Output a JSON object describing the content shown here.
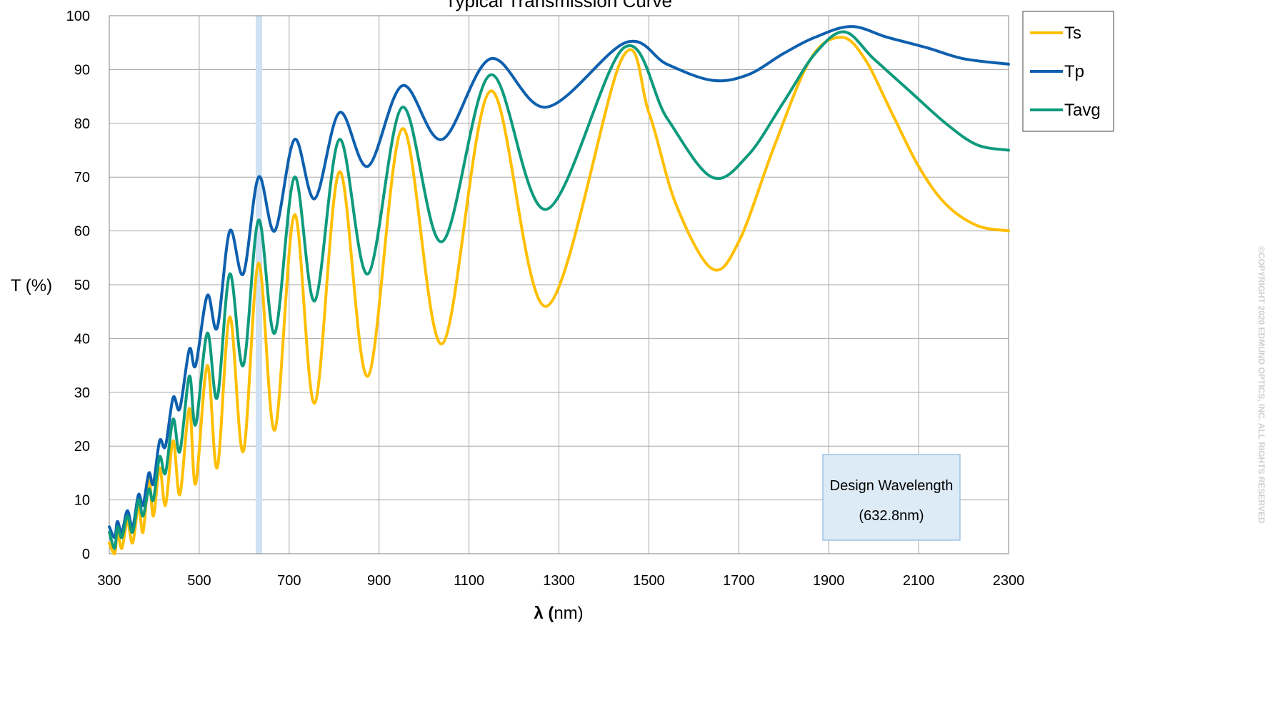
{
  "chart_data": {
    "type": "line",
    "title": "Typical Transmission Curve",
    "xlabel_symbol": "λ (",
    "xlabel_unit": "nm)",
    "ylabel": "T (%)",
    "xlim": [
      300,
      2300
    ],
    "ylim": [
      0,
      100
    ],
    "xticks": [
      300,
      500,
      700,
      900,
      1100,
      1300,
      1500,
      1700,
      1900,
      2100,
      2300
    ],
    "yticks": [
      0,
      10,
      20,
      30,
      40,
      50,
      60,
      70,
      80,
      90,
      100
    ],
    "grid": true,
    "legend_position": "top-right, outside plot",
    "series": [
      {
        "name": "Ts",
        "color": "#FFBF00",
        "points": [
          [
            300,
            2
          ],
          [
            312,
            0
          ],
          [
            318,
            4
          ],
          [
            328,
            1
          ],
          [
            340,
            6
          ],
          [
            352,
            2
          ],
          [
            365,
            9
          ],
          [
            375,
            4
          ],
          [
            388,
            14
          ],
          [
            398,
            7
          ],
          [
            412,
            16
          ],
          [
            425,
            9
          ],
          [
            442,
            21
          ],
          [
            457,
            11
          ],
          [
            478,
            27
          ],
          [
            492,
            13
          ],
          [
            518,
            35
          ],
          [
            540,
            16
          ],
          [
            568,
            44
          ],
          [
            598,
            19
          ],
          [
            632,
            54
          ],
          [
            668,
            23
          ],
          [
            712,
            63
          ],
          [
            757,
            28
          ],
          [
            812,
            71
          ],
          [
            875,
            33
          ],
          [
            952,
            79
          ],
          [
            1040,
            39
          ],
          [
            1148,
            86
          ],
          [
            1272,
            46
          ],
          [
            1440,
            92
          ],
          [
            1500,
            82
          ],
          [
            1560,
            65
          ],
          [
            1640,
            53
          ],
          [
            1700,
            58
          ],
          [
            1780,
            76
          ],
          [
            1860,
            92
          ],
          [
            1928,
            96
          ],
          [
            1980,
            92
          ],
          [
            2040,
            82
          ],
          [
            2100,
            72
          ],
          [
            2160,
            65
          ],
          [
            2230,
            61
          ],
          [
            2300,
            60
          ]
        ]
      },
      {
        "name": "Tp",
        "color": "#0E60AE",
        "points": [
          [
            300,
            5
          ],
          [
            312,
            3
          ],
          [
            318,
            6
          ],
          [
            328,
            4
          ],
          [
            340,
            8
          ],
          [
            352,
            5
          ],
          [
            365,
            11
          ],
          [
            375,
            9
          ],
          [
            388,
            15
          ],
          [
            398,
            13
          ],
          [
            412,
            21
          ],
          [
            425,
            20
          ],
          [
            442,
            29
          ],
          [
            457,
            27
          ],
          [
            478,
            38
          ],
          [
            492,
            35
          ],
          [
            518,
            48
          ],
          [
            540,
            42
          ],
          [
            568,
            60
          ],
          [
            598,
            52
          ],
          [
            632,
            70
          ],
          [
            668,
            60
          ],
          [
            712,
            77
          ],
          [
            757,
            66
          ],
          [
            812,
            82
          ],
          [
            875,
            72
          ],
          [
            952,
            87
          ],
          [
            1040,
            77
          ],
          [
            1148,
            92
          ],
          [
            1272,
            83
          ],
          [
            1448,
            95
          ],
          [
            1540,
            91
          ],
          [
            1640,
            88
          ],
          [
            1720,
            89
          ],
          [
            1800,
            93
          ],
          [
            1870,
            96
          ],
          [
            1950,
            98
          ],
          [
            2030,
            96
          ],
          [
            2120,
            94
          ],
          [
            2200,
            92
          ],
          [
            2300,
            91
          ]
        ]
      },
      {
        "name": "Tavg",
        "color": "#0E9A7D",
        "points": [
          [
            300,
            4
          ],
          [
            312,
            1
          ],
          [
            318,
            5
          ],
          [
            328,
            3
          ],
          [
            340,
            7
          ],
          [
            352,
            4
          ],
          [
            365,
            10
          ],
          [
            375,
            7
          ],
          [
            388,
            12
          ],
          [
            398,
            10
          ],
          [
            412,
            18
          ],
          [
            425,
            15
          ],
          [
            442,
            25
          ],
          [
            457,
            19
          ],
          [
            478,
            33
          ],
          [
            492,
            24
          ],
          [
            518,
            41
          ],
          [
            540,
            29
          ],
          [
            568,
            52
          ],
          [
            598,
            35
          ],
          [
            632,
            62
          ],
          [
            668,
            41
          ],
          [
            712,
            70
          ],
          [
            757,
            47
          ],
          [
            812,
            77
          ],
          [
            875,
            52
          ],
          [
            952,
            83
          ],
          [
            1040,
            58
          ],
          [
            1148,
            89
          ],
          [
            1272,
            64
          ],
          [
            1444,
            94
          ],
          [
            1540,
            81
          ],
          [
            1640,
            70
          ],
          [
            1720,
            74
          ],
          [
            1800,
            84
          ],
          [
            1870,
            93
          ],
          [
            1935,
            97
          ],
          [
            2000,
            92
          ],
          [
            2080,
            86
          ],
          [
            2160,
            80
          ],
          [
            2230,
            76
          ],
          [
            2300,
            75
          ]
        ]
      }
    ],
    "highlight_band": {
      "x_center": 632.8,
      "color": "#CFE2F3"
    },
    "annotation": {
      "line1": "Design Wavelength",
      "line2": "(632.8nm)",
      "fill": "#DDEBF7",
      "stroke": "#9DC3E6"
    },
    "watermark": "©COPYRIGHT 2020 EDMUND OPTICS, INC. ALL RIGHTS RESERVED"
  }
}
